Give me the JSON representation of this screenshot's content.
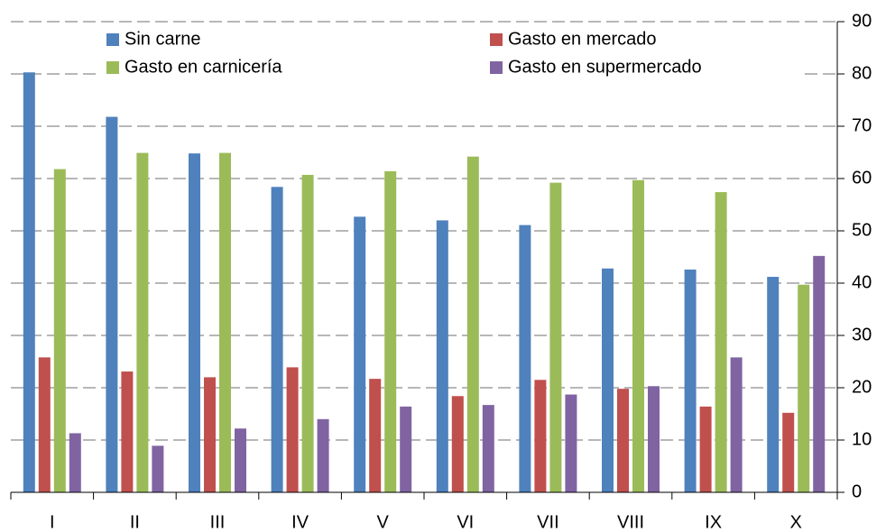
{
  "chart_data": {
    "type": "bar",
    "categories": [
      "I",
      "II",
      "III",
      "IV",
      "V",
      "VI",
      "VII",
      "VIII",
      "IX",
      "X"
    ],
    "series": [
      {
        "name": "Sin carne",
        "color": "#4f81bd",
        "values": [
          80.3,
          71.8,
          64.8,
          58.4,
          52.7,
          52.0,
          51.1,
          42.8,
          42.6,
          41.2
        ]
      },
      {
        "name": "Gasto en mercado",
        "color": "#c0504d",
        "values": [
          25.8,
          23.1,
          22.0,
          23.9,
          21.7,
          18.4,
          21.5,
          19.8,
          16.4,
          15.2
        ]
      },
      {
        "name": "Gasto en carnicería",
        "color": "#9bbb59",
        "values": [
          61.8,
          64.9,
          64.9,
          60.7,
          61.4,
          64.2,
          59.2,
          59.7,
          57.4,
          39.7
        ]
      },
      {
        "name": "Gasto en supermercado",
        "color": "#8064a2",
        "values": [
          11.3,
          8.9,
          12.2,
          14.0,
          16.4,
          16.7,
          18.7,
          20.3,
          25.8,
          45.2
        ]
      }
    ],
    "ylim": [
      0,
      90
    ],
    "yticks": [
      0,
      10,
      20,
      30,
      40,
      50,
      60,
      70,
      80,
      90
    ],
    "grid": true,
    "y_axis_side": "right",
    "legend": "top"
  }
}
